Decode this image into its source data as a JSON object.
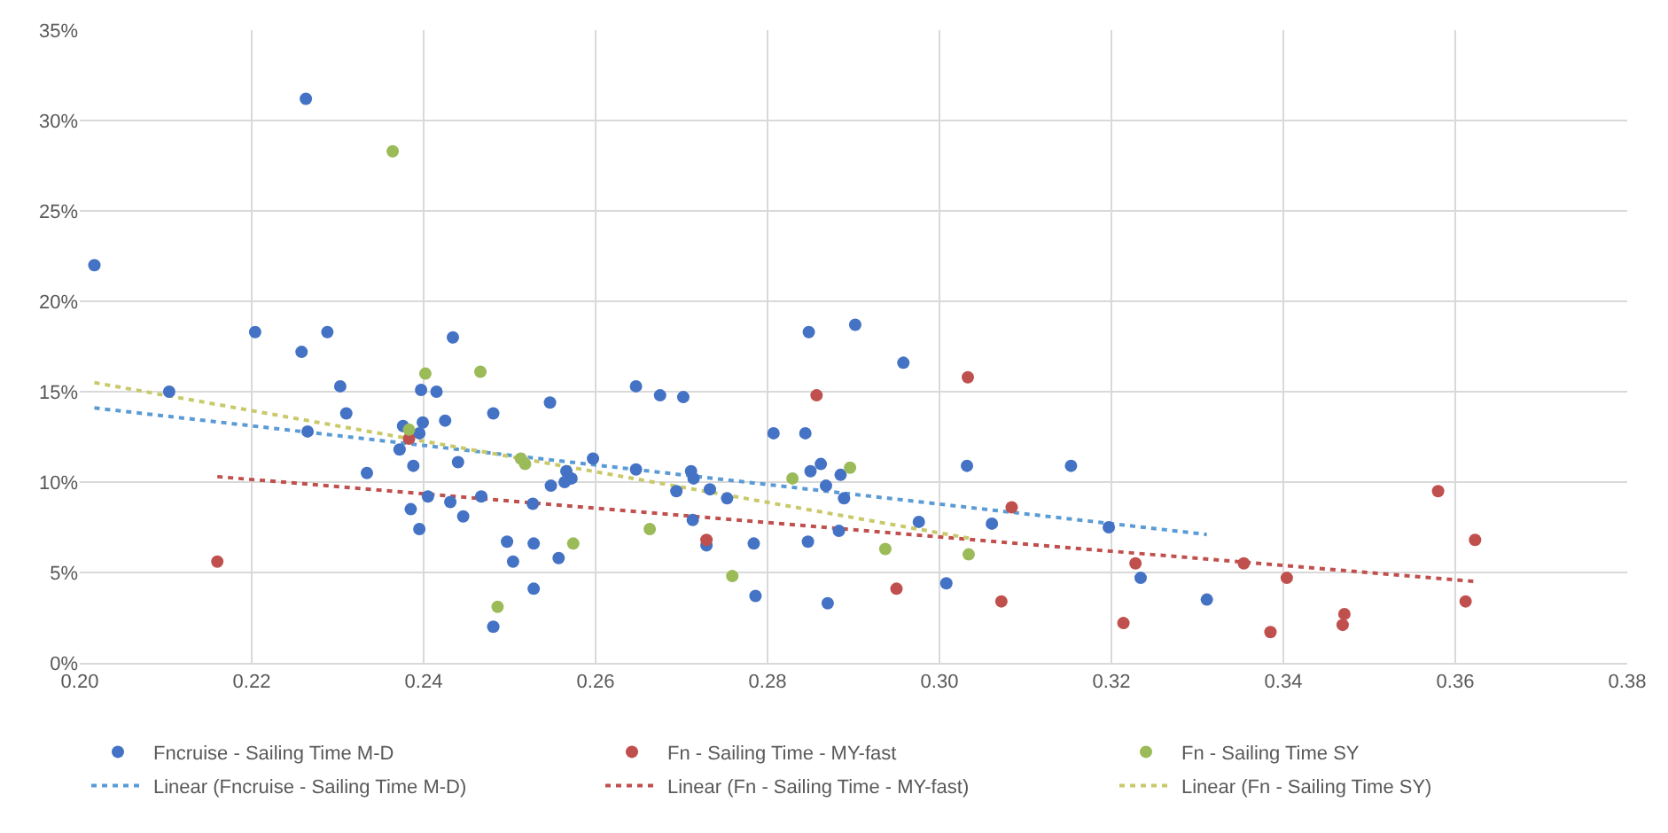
{
  "chart_data": {
    "type": "scatter",
    "xlim": [
      0.2,
      0.38
    ],
    "xticks": [
      {
        "value": 0.2,
        "label": "0.20"
      },
      {
        "value": 0.22,
        "label": "0.22"
      },
      {
        "value": 0.24,
        "label": "0.24"
      },
      {
        "value": 0.26,
        "label": "0.26"
      },
      {
        "value": 0.28,
        "label": "0.28"
      },
      {
        "value": 0.3,
        "label": "0.30"
      },
      {
        "value": 0.32,
        "label": "0.32"
      },
      {
        "value": 0.34,
        "label": "0.34"
      },
      {
        "value": 0.36,
        "label": "0.36"
      },
      {
        "value": 0.38,
        "label": "0.38"
      }
    ],
    "ylim": [
      0,
      35
    ],
    "yticks": [
      {
        "value": 0,
        "label": "0%"
      },
      {
        "value": 5,
        "label": "5%"
      },
      {
        "value": 10,
        "label": "10%"
      },
      {
        "value": 15,
        "label": "15%"
      },
      {
        "value": 20,
        "label": "20%"
      },
      {
        "value": 25,
        "label": "25%"
      },
      {
        "value": 30,
        "label": "30%"
      },
      {
        "value": 35,
        "label": "35%"
      }
    ],
    "grid": true,
    "legend": "bottom",
    "marker": "circle",
    "series": [
      {
        "name": "Fncruise - Sailing Time M-D",
        "color": "#4472c4",
        "x": [
          0.2017,
          0.2104,
          0.2204,
          0.2258,
          0.2288,
          0.2303,
          0.231,
          0.2265,
          0.2334,
          0.2434,
          0.2263,
          0.2376,
          0.2397,
          0.2415,
          0.2399,
          0.2395,
          0.2425,
          0.2372,
          0.2388,
          0.2481,
          0.244,
          0.2405,
          0.2385,
          0.2431,
          0.2446,
          0.2395,
          0.2467,
          0.2547,
          0.2597,
          0.2566,
          0.2572,
          0.2564,
          0.2548,
          0.2527,
          0.2497,
          0.2528,
          0.2557,
          0.2504,
          0.2528,
          0.2481,
          0.2647,
          0.2675,
          0.2647,
          0.2702,
          0.2711,
          0.2714,
          0.2694,
          0.2733,
          0.2753,
          0.2713,
          0.2729,
          0.2784,
          0.2786,
          0.2807,
          0.2844,
          0.2848,
          0.2902,
          0.2958,
          0.285,
          0.2862,
          0.2885,
          0.2868,
          0.2889,
          0.2883,
          0.2847,
          0.287,
          0.2976,
          0.3008,
          0.3032,
          0.3061,
          0.3153,
          0.3197,
          0.3234,
          0.3311
        ],
        "values": [
          22.0,
          15.0,
          18.3,
          17.2,
          18.3,
          15.3,
          13.8,
          12.8,
          10.5,
          18.0,
          31.2,
          13.1,
          15.1,
          15.0,
          13.3,
          12.7,
          13.4,
          11.8,
          10.9,
          13.8,
          11.1,
          9.2,
          8.5,
          8.9,
          8.1,
          7.4,
          9.2,
          14.4,
          11.3,
          10.6,
          10.2,
          10.0,
          9.8,
          8.8,
          6.7,
          6.6,
          5.8,
          5.6,
          4.1,
          2.0,
          10.7,
          14.8,
          15.3,
          14.7,
          10.6,
          10.2,
          9.5,
          9.6,
          9.1,
          7.9,
          6.5,
          6.6,
          3.7,
          12.7,
          12.7,
          18.3,
          18.7,
          16.6,
          10.6,
          11.0,
          10.4,
          9.8,
          9.1,
          7.3,
          6.7,
          3.3,
          7.8,
          4.4,
          10.9,
          7.7,
          10.9,
          7.5,
          4.7,
          3.5
        ]
      },
      {
        "name": "Fn - Sailing Time - MY-fast",
        "color": "#c0504d",
        "x": [
          0.216,
          0.2383,
          0.2857,
          0.2729,
          0.3033,
          0.295,
          0.3084,
          0.3072,
          0.3228,
          0.3214,
          0.3354,
          0.3404,
          0.3385,
          0.3471,
          0.3469,
          0.358,
          0.3623,
          0.3612
        ],
        "values": [
          5.6,
          12.4,
          14.8,
          6.8,
          15.8,
          4.1,
          8.6,
          3.4,
          5.5,
          2.2,
          5.5,
          4.7,
          1.7,
          2.7,
          2.1,
          9.5,
          6.8,
          3.4
        ]
      },
      {
        "name": "Fn - Sailing Time SY",
        "color": "#9bbb59",
        "x": [
          0.2364,
          0.2402,
          0.2466,
          0.2383,
          0.2513,
          0.2518,
          0.2574,
          0.2486,
          0.2663,
          0.2759,
          0.2829,
          0.2896,
          0.2937,
          0.3034
        ],
        "values": [
          28.3,
          16.0,
          16.1,
          12.9,
          11.3,
          11.0,
          6.6,
          3.1,
          7.4,
          4.8,
          10.2,
          10.8,
          6.3,
          6.0
        ]
      },
      {
        "type": "line",
        "name": "Linear (Fncruise - Sailing Time M-D)",
        "color": "#5b9bd5",
        "line_style": "dotted",
        "marker": "none",
        "x": [
          0.2017,
          0.3311
        ],
        "values": [
          14.1,
          7.1
        ]
      },
      {
        "type": "line",
        "name": "Linear (Fn - Sailing Time - MY-fast)",
        "color": "#c0504d",
        "line_style": "dotted",
        "marker": "none",
        "x": [
          0.216,
          0.3623
        ],
        "values": [
          10.3,
          4.5
        ]
      },
      {
        "type": "line",
        "name": "Linear (Fn - Sailing Time SY)",
        "color": "#c9c96b",
        "line_style": "dotted",
        "marker": "none",
        "x": [
          0.2017,
          0.3034
        ],
        "values": [
          15.5,
          6.9
        ]
      }
    ]
  }
}
